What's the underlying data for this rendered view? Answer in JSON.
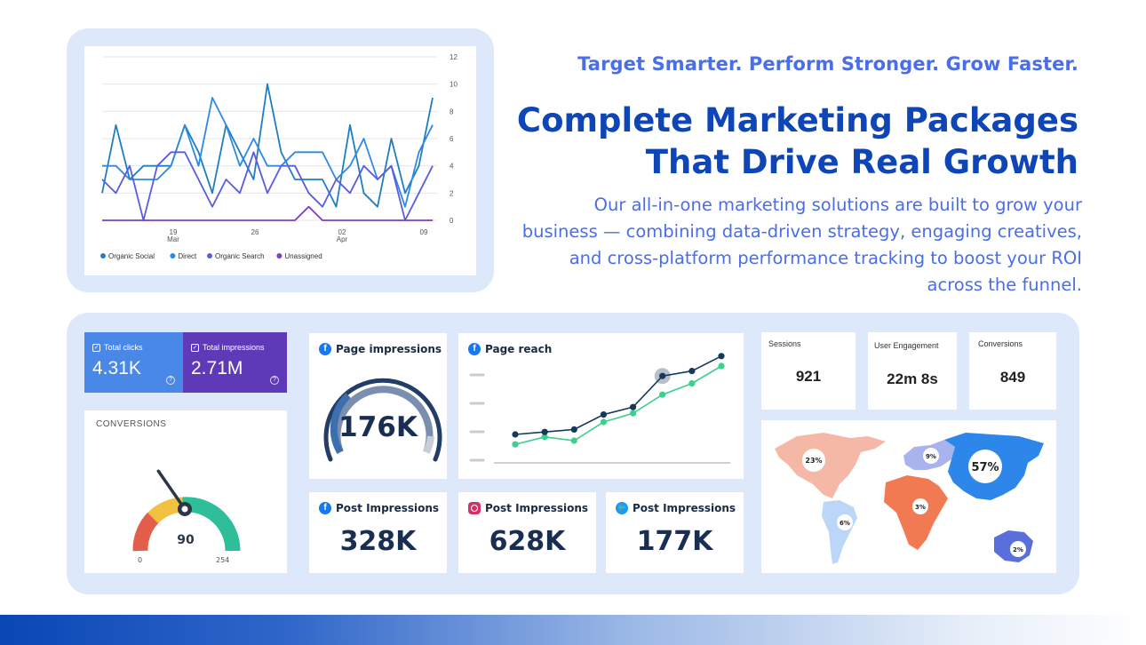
{
  "hero": {
    "tagline": "Target Smarter. Perform Stronger. Grow Faster.",
    "headline_line1": "Complete Marketing Packages",
    "headline_line2": "That Drive Real Growth",
    "body": "Our all-in-one marketing solutions are built to grow your business — combining data-driven strategy, engaging creatives, and cross-platform performance tracking to boost your ROI across the funnel."
  },
  "chart_data": {
    "type": "line",
    "x": [
      "19 Mar",
      "",
      "",
      "",
      "",
      "",
      "",
      "26",
      "",
      "",
      "",
      "",
      "",
      "",
      "02 Apr",
      "",
      "",
      "",
      "",
      "",
      "",
      "09",
      "",
      "",
      ""
    ],
    "x_tick_labels": [
      {
        "day": "19",
        "month": "Mar"
      },
      {
        "day": "26",
        "month": ""
      },
      {
        "day": "02",
        "month": "Apr"
      },
      {
        "day": "09",
        "month": ""
      }
    ],
    "y_ticks": [
      "12",
      "10",
      "8",
      "6",
      "4",
      "2",
      "0"
    ],
    "ylim": [
      0,
      12
    ],
    "grid": true,
    "legend": "bottom-left",
    "series": [
      {
        "name": "Organic Social",
        "color": "#1f7ec1",
        "values": [
          2,
          7,
          3,
          4,
          4,
          4,
          7,
          5,
          2,
          7,
          5,
          3,
          10,
          5,
          3,
          3,
          3,
          1,
          7,
          2,
          1,
          6,
          2,
          4,
          9
        ]
      },
      {
        "name": "Direct",
        "color": "#2d8ae0",
        "values": [
          4,
          4,
          3,
          3,
          3,
          4,
          7,
          4,
          9,
          7,
          4,
          6,
          4,
          4,
          5,
          5,
          5,
          3,
          4,
          6,
          3,
          4,
          1,
          5,
          7
        ]
      },
      {
        "name": "Organic Search",
        "color": "#5a5ce0",
        "values": [
          3,
          2,
          4,
          0,
          4,
          5,
          5,
          3,
          1,
          3,
          2,
          5,
          2,
          4,
          4,
          2,
          1,
          3,
          2,
          4,
          3,
          4,
          0,
          2,
          4
        ]
      },
      {
        "name": "Unassigned",
        "color": "#7c3fc0",
        "values": [
          0,
          0,
          0,
          0,
          0,
          0,
          0,
          0,
          0,
          0,
          0,
          0,
          0,
          0,
          0,
          1,
          0,
          0,
          0,
          0,
          0,
          0,
          0,
          0,
          0
        ]
      }
    ]
  },
  "kpis": {
    "clicks": {
      "label": "Total clicks",
      "value": "4.31K",
      "color": "#4a88e8"
    },
    "impressions": {
      "label": "Total impressions",
      "value": "2.71M",
      "color": "#5e3ab8"
    }
  },
  "conversions_gauge": {
    "title": "CONVERSIONS",
    "value": "90",
    "min": "0",
    "max": "254",
    "level": 90
  },
  "page_impressions": {
    "title": "Page impressions",
    "value": "176K"
  },
  "page_reach": {
    "title": "Page reach",
    "series_dark": [
      2,
      2.2,
      2.4,
      3.6,
      4.2,
      6.7,
      7.1,
      8.3
    ],
    "series_light": [
      1.2,
      1.8,
      1.5,
      3,
      3.7,
      5.2,
      6.1,
      7.5
    ]
  },
  "post_impressions": [
    {
      "title": "Post Impressions",
      "value": "328K",
      "icon": "facebook-icon"
    },
    {
      "title": "Post Impressions",
      "value": "628K",
      "icon": "instagram-icon"
    },
    {
      "title": "Post Impressions",
      "value": "177K",
      "icon": "twitter-icon"
    }
  ],
  "stats": {
    "sessions": {
      "label": "Sessions",
      "value": "921"
    },
    "engagement": {
      "label": "User Engagement",
      "value": "22m 8s"
    },
    "conversions": {
      "label": "Conversions",
      "value": "849"
    }
  },
  "world_map": {
    "regions": [
      {
        "name": "North America",
        "value": "23%",
        "color": "#f6b8a6"
      },
      {
        "name": "Europe",
        "value": "9%",
        "color": "#a9b3ee"
      },
      {
        "name": "Asia",
        "value": "57%",
        "color": "#2d86ea"
      },
      {
        "name": "South America",
        "value": "6%",
        "color": "#bcd6f7"
      },
      {
        "name": "Africa",
        "value": "3%",
        "color": "#f27a52"
      },
      {
        "name": "Australia",
        "value": "2%",
        "color": "#5a6fdc"
      }
    ]
  }
}
